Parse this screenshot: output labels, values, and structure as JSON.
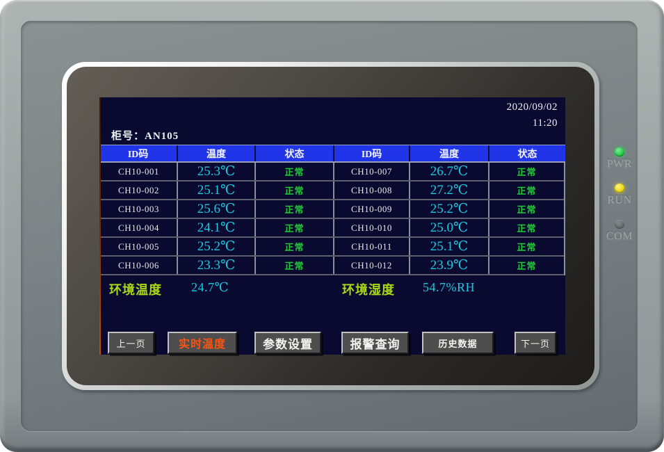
{
  "device": {
    "indicator_leds": [
      {
        "label": "PWR",
        "state": "on",
        "color": "#22cc44"
      },
      {
        "label": "RUN",
        "state": "on",
        "color": "#ecd80a"
      },
      {
        "label": "COM",
        "state": "off",
        "color": "#676d6f"
      }
    ]
  },
  "screen": {
    "datetime": {
      "date": "2020/09/02",
      "time": "11:20"
    },
    "cabinet_label": "柜号：AN105",
    "table": {
      "headers": [
        "ID码",
        "温度",
        "状态",
        "ID码",
        "温度",
        "状态"
      ],
      "rows": [
        [
          "CH10-001",
          "25.3℃",
          "正常",
          "CH10-007",
          "26.7℃",
          "正常"
        ],
        [
          "CH10-002",
          "25.1℃",
          "正常",
          "CH10-008",
          "27.2℃",
          "正常"
        ],
        [
          "CH10-003",
          "25.6℃",
          "正常",
          "CH10-009",
          "25.2℃",
          "正常"
        ],
        [
          "CH10-004",
          "24.1℃",
          "正常",
          "CH10-010",
          "25.0℃",
          "正常"
        ],
        [
          "CH10-005",
          "25.2℃",
          "正常",
          "CH10-011",
          "25.1℃",
          "正常"
        ],
        [
          "CH10-006",
          "23.3℃",
          "正常",
          "CH10-012",
          "23.9℃",
          "正常"
        ]
      ]
    },
    "ambient": {
      "temperature_label": "环境温度",
      "temperature_value": "24.7℃",
      "humidity_label": "环境湿度",
      "humidity_value": "54.7%RH"
    },
    "nav_buttons": [
      {
        "label": "上一页",
        "active": false,
        "size": "small"
      },
      {
        "label": "实时温度",
        "active": true,
        "size": "large"
      },
      {
        "label": "参数设置",
        "active": false,
        "size": "large"
      },
      {
        "label": "报警查询",
        "active": false,
        "size": "large"
      },
      {
        "label": "历史数据",
        "active": false,
        "size": "medium"
      },
      {
        "label": "下一页",
        "active": false,
        "size": "small"
      }
    ],
    "colors": {
      "screen_background": "#0a0a30",
      "table_header_blue": "#2135e8",
      "temperature_cyan": "#1cc8e0",
      "status_green": "#22c838",
      "ambient_label_green": "#a8d818",
      "active_button_orange": "#ff5310"
    }
  }
}
